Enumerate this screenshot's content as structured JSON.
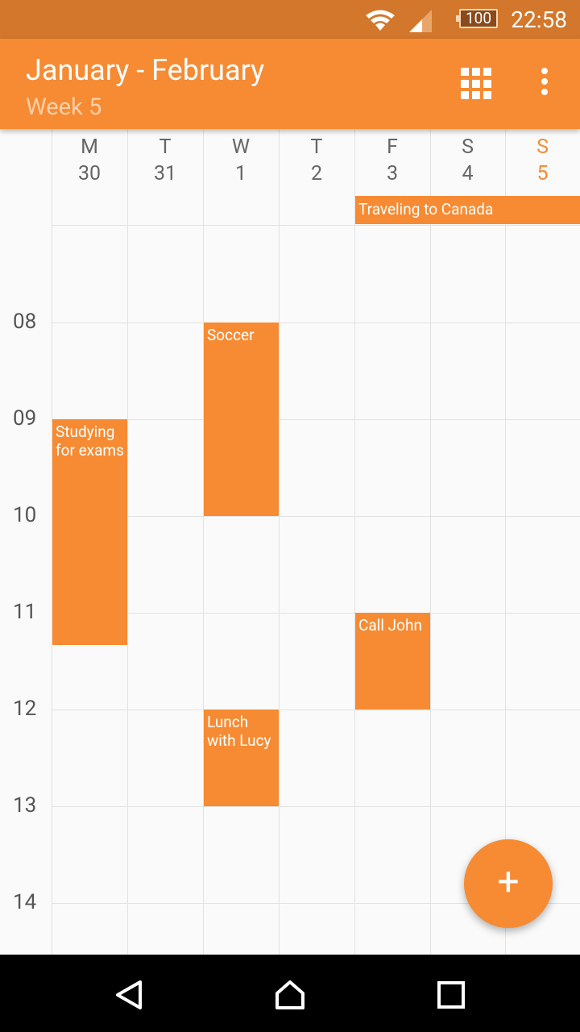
{
  "status": {
    "time": "22:58",
    "battery": "100"
  },
  "header": {
    "title": "January - February",
    "subtitle": "Week 5"
  },
  "days": [
    {
      "letter": "M",
      "date": "30"
    },
    {
      "letter": "T",
      "date": "31"
    },
    {
      "letter": "W",
      "date": "1"
    },
    {
      "letter": "T",
      "date": "2"
    },
    {
      "letter": "F",
      "date": "3"
    },
    {
      "letter": "S",
      "date": "4"
    },
    {
      "letter": "S",
      "date": "5",
      "today": true
    }
  ],
  "hours": [
    "08",
    "09",
    "10",
    "11",
    "12",
    "13",
    "14"
  ],
  "all_day_events": [
    {
      "title": "Traveling to Canada",
      "start_day": 4,
      "end_day": 6
    }
  ],
  "events": [
    {
      "title": "Studying for exams",
      "day": 0,
      "start": "09:00",
      "end": "11:20"
    },
    {
      "title": "Soccer",
      "day": 2,
      "start": "08:00",
      "end": "10:00"
    },
    {
      "title": "Lunch with Lucy",
      "day": 2,
      "start": "12:00",
      "end": "13:00"
    },
    {
      "title": "Call John",
      "day": 4,
      "start": "11:00",
      "end": "12:00"
    }
  ],
  "fab": {
    "label": "+"
  },
  "colors": {
    "accent": "#f68b33",
    "status_bar": "#d2772b"
  }
}
